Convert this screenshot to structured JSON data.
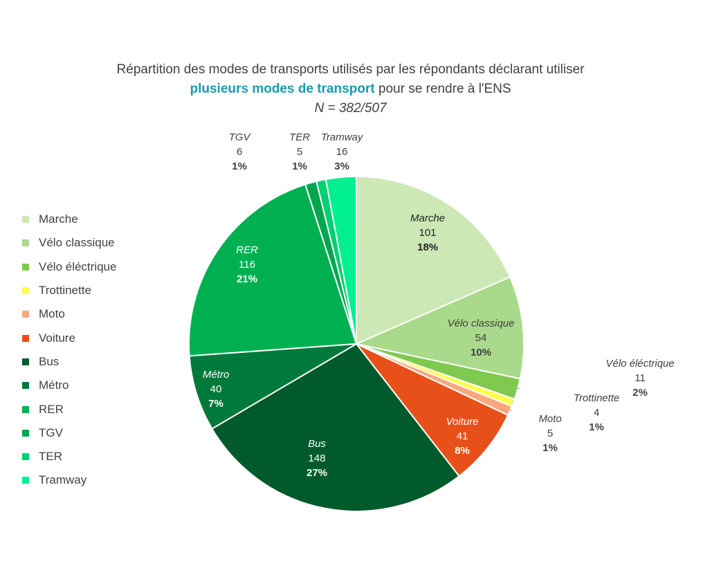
{
  "chart_data": {
    "type": "pie",
    "title_line1": "Répartition des modes de transports utilisés par les répondants déclarant utiliser",
    "title_line2_bold": "plusieurs modes de transport",
    "title_line2_rest": " pour se rendre à l'ENS",
    "subtitle": "N = 382/507",
    "legend_position": "left",
    "slices": [
      {
        "label": "Marche",
        "value": 101,
        "percent": "18%",
        "color": "#cce8b5"
      },
      {
        "label": "Vélo classique",
        "value": 54,
        "percent": "10%",
        "color": "#a9d98a"
      },
      {
        "label": "Vélo éléctrique",
        "value": 11,
        "percent": "2%",
        "color": "#7fc94f"
      },
      {
        "label": "Trottinette",
        "value": 4,
        "percent": "1%",
        "color": "#ffff4d"
      },
      {
        "label": "Moto",
        "value": 5,
        "percent": "1%",
        "color": "#f9a87c"
      },
      {
        "label": "Voiture",
        "value": 41,
        "percent": "8%",
        "color": "#e8501a"
      },
      {
        "label": "Bus",
        "value": 148,
        "percent": "27%",
        "color": "#005a2b"
      },
      {
        "label": "Métro",
        "value": 40,
        "percent": "7%",
        "color": "#007a3a"
      },
      {
        "label": "RER",
        "value": 116,
        "percent": "21%",
        "color": "#00b050"
      },
      {
        "label": "TGV",
        "value": 6,
        "percent": "1%",
        "color": "#00a650"
      },
      {
        "label": "TER",
        "value": 5,
        "percent": "1%",
        "color": "#00d070"
      },
      {
        "label": "Tramway",
        "value": 16,
        "percent": "3%",
        "color": "#00f090"
      }
    ]
  }
}
